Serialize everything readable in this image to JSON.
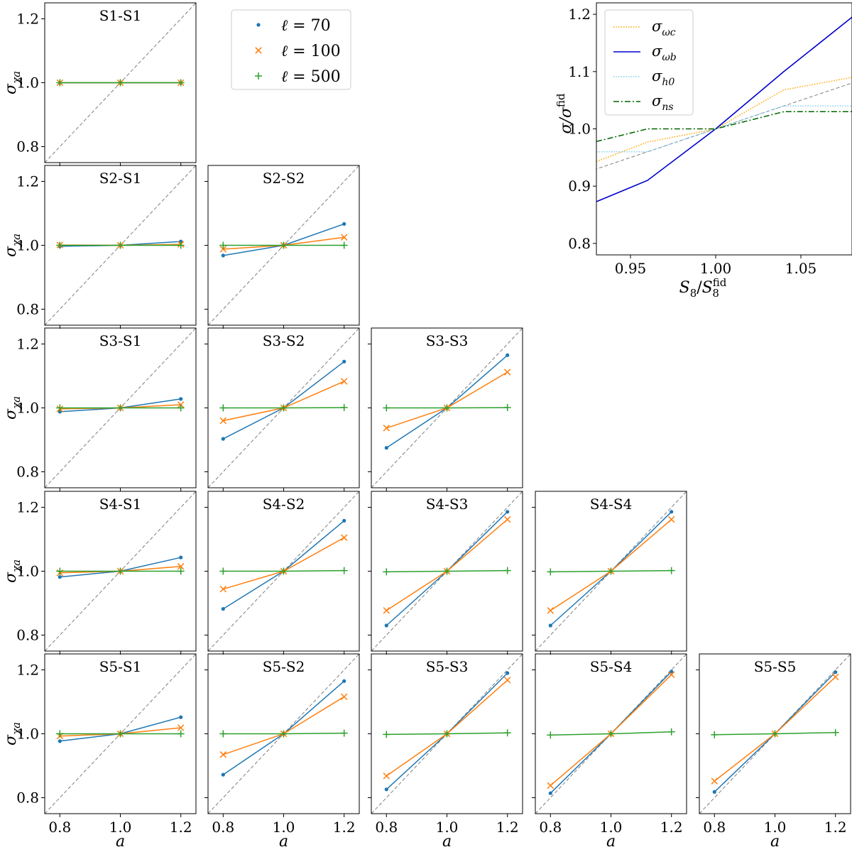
{
  "chart_data": {
    "grid": {
      "type": "line",
      "x": [
        0.8,
        1.0,
        1.2
      ],
      "xlim": [
        0.75,
        1.25
      ],
      "ylim": [
        0.75,
        1.25
      ],
      "xticks": [
        "0.8",
        "1.0",
        "1.2"
      ],
      "yticks": [
        "0.8",
        "1.0",
        "1.2"
      ],
      "xlabel": "a",
      "ylabel_base": "σ",
      "ylabel_sub": "χa",
      "reference_line": "y = x",
      "legend": {
        "placement": "above S2-S2",
        "entries": [
          {
            "prefix": "ℓ",
            "label": "= 70",
            "marker": "dot",
            "color": "#1f77b4"
          },
          {
            "prefix": "ℓ",
            "label": "= 100",
            "marker": "x",
            "color": "#ff7f0e"
          },
          {
            "prefix": "ℓ",
            "label": "= 500",
            "marker": "plus",
            "color": "#2ca02c"
          }
        ]
      },
      "panels": [
        {
          "title": "S1-S1",
          "row": 0,
          "col": 0,
          "series": [
            [
              1.0,
              1.0,
              1.0
            ],
            [
              1.0,
              1.0,
              1.0
            ],
            [
              1.0,
              1.0,
              1.0
            ]
          ]
        },
        {
          "title": "S2-S1",
          "row": 1,
          "col": 0,
          "series": [
            [
              0.997,
              1.0,
              1.012
            ],
            [
              1.001,
              1.0,
              1.003
            ],
            [
              1.0,
              1.0,
              1.0
            ]
          ]
        },
        {
          "title": "S2-S2",
          "row": 1,
          "col": 1,
          "series": [
            [
              0.968,
              1.0,
              1.067
            ],
            [
              0.988,
              1.0,
              1.025
            ],
            [
              1.0,
              1.0,
              1.0
            ]
          ]
        },
        {
          "title": "S3-S1",
          "row": 2,
          "col": 0,
          "series": [
            [
              0.988,
              1.0,
              1.028
            ],
            [
              0.997,
              1.0,
              1.01
            ],
            [
              1.0,
              1.0,
              1.0
            ]
          ]
        },
        {
          "title": "S3-S2",
          "row": 2,
          "col": 1,
          "series": [
            [
              0.903,
              1.0,
              1.145
            ],
            [
              0.96,
              1.0,
              1.083
            ],
            [
              1.0,
              1.0,
              1.001
            ]
          ]
        },
        {
          "title": "S3-S3",
          "row": 2,
          "col": 2,
          "series": [
            [
              0.875,
              1.0,
              1.165
            ],
            [
              0.937,
              1.0,
              1.112
            ],
            [
              1.0,
              1.0,
              1.001
            ]
          ]
        },
        {
          "title": "S4-S1",
          "row": 3,
          "col": 0,
          "series": [
            [
              0.982,
              1.0,
              1.043
            ],
            [
              0.995,
              1.0,
              1.015
            ],
            [
              1.0,
              1.0,
              1.0
            ]
          ]
        },
        {
          "title": "S4-S2",
          "row": 3,
          "col": 1,
          "series": [
            [
              0.882,
              1.0,
              1.158
            ],
            [
              0.944,
              1.0,
              1.105
            ],
            [
              1.0,
              1.0,
              1.002
            ]
          ]
        },
        {
          "title": "S4-S3",
          "row": 3,
          "col": 2,
          "series": [
            [
              0.83,
              1.0,
              1.186
            ],
            [
              0.877,
              1.0,
              1.162
            ],
            [
              0.998,
              1.0,
              1.002
            ]
          ]
        },
        {
          "title": "S4-S4",
          "row": 3,
          "col": 3,
          "series": [
            [
              0.83,
              1.0,
              1.186
            ],
            [
              0.877,
              1.0,
              1.162
            ],
            [
              0.998,
              1.0,
              1.002
            ]
          ]
        },
        {
          "title": "S5-S1",
          "row": 4,
          "col": 0,
          "series": [
            [
              0.977,
              1.0,
              1.052
            ],
            [
              0.993,
              1.0,
              1.019
            ],
            [
              1.0,
              1.0,
              1.0
            ]
          ]
        },
        {
          "title": "S5-S2",
          "row": 4,
          "col": 1,
          "series": [
            [
              0.872,
              1.0,
              1.165
            ],
            [
              0.935,
              1.0,
              1.116
            ],
            [
              1.0,
              1.0,
              1.002
            ]
          ]
        },
        {
          "title": "S5-S3",
          "row": 4,
          "col": 2,
          "series": [
            [
              0.826,
              1.0,
              1.19
            ],
            [
              0.868,
              1.0,
              1.168
            ],
            [
              0.998,
              1.0,
              1.003
            ]
          ]
        },
        {
          "title": "S5-S4",
          "row": 4,
          "col": 3,
          "series": [
            [
              0.814,
              1.0,
              1.195
            ],
            [
              0.838,
              1.0,
              1.185
            ],
            [
              0.996,
              1.0,
              1.006
            ]
          ]
        },
        {
          "title": "S5-S5",
          "row": 4,
          "col": 4,
          "series": [
            [
              0.818,
              1.0,
              1.193
            ],
            [
              0.852,
              1.0,
              1.178
            ],
            [
              0.997,
              1.0,
              1.004
            ]
          ]
        }
      ]
    },
    "inset": {
      "type": "line",
      "x": [
        0.93,
        0.96,
        1.0,
        1.04,
        1.08
      ],
      "xlim": [
        0.93,
        1.08
      ],
      "ylim": [
        0.78,
        1.22
      ],
      "xticks": [
        "0.95",
        "1.00",
        "1.05"
      ],
      "yticks": [
        "0.8",
        "0.9",
        "1.0",
        "1.1",
        "1.2"
      ],
      "xlabel_base": "S",
      "xlabel_sub": "8",
      "xlabel_den_sup": "fid",
      "ylabel": "σ/σ",
      "ylabel_sup": "fid",
      "reference_line": "y = x",
      "legend": {
        "placement": "top-left"
      },
      "series": [
        {
          "label_base": "σ",
          "label_sub": "ωc",
          "color": "#ffa500",
          "style": "dotted",
          "values": [
            0.943,
            0.977,
            1.0,
            1.068,
            1.09
          ]
        },
        {
          "label_base": "σ",
          "label_sub": "ωb",
          "color": "#0000cd",
          "style": "solid",
          "values": [
            0.873,
            0.91,
            1.0,
            1.1,
            1.195
          ]
        },
        {
          "label_base": "σ",
          "label_sub": "h0",
          "color": "#87ceeb",
          "style": "dotted",
          "values": [
            0.96,
            0.96,
            1.0,
            1.04,
            1.04
          ]
        },
        {
          "label_base": "σ",
          "label_sub": "ns",
          "color": "#006400",
          "style": "dashdot",
          "values": [
            0.978,
            1.0,
            1.0,
            1.03,
            1.03
          ]
        }
      ]
    }
  }
}
